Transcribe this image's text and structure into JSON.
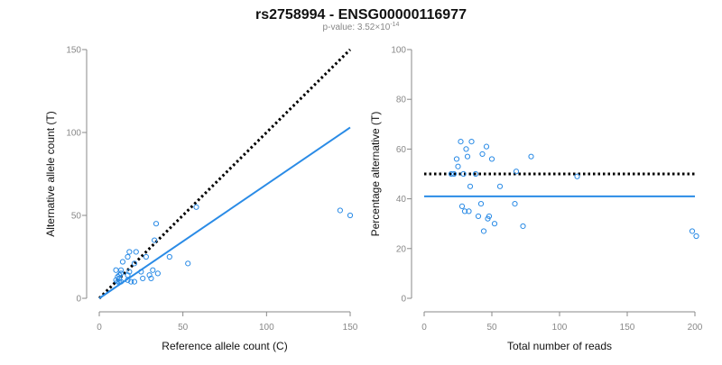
{
  "title": "rs2758994 - ENSG00000116977",
  "subtitle": {
    "prefix": "p-value: 3.52×10",
    "exponent": "-14"
  },
  "colors": {
    "points": "#2a8be6",
    "fit_line": "#2a8be6",
    "reference_line": "#000000",
    "axis": "#888888"
  },
  "chart_data": [
    {
      "type": "scatter",
      "xlabel": "Reference allele count (C)",
      "ylabel": "Alternative allele count (T)",
      "xlim": [
        0,
        150
      ],
      "ylim": [
        0,
        150
      ],
      "xticks": [
        0,
        50,
        100,
        150
      ],
      "yticks": [
        0,
        50,
        100,
        150
      ],
      "grid": false,
      "points": [
        [
          10,
          17
        ],
        [
          11,
          13
        ],
        [
          12,
          12
        ],
        [
          12,
          14
        ],
        [
          12,
          10
        ],
        [
          10,
          11
        ],
        [
          11,
          10
        ],
        [
          13,
          17
        ],
        [
          14,
          22
        ],
        [
          13,
          15
        ],
        [
          13,
          10
        ],
        [
          18,
          28
        ],
        [
          17,
          25
        ],
        [
          17,
          14
        ],
        [
          18,
          16
        ],
        [
          17,
          11
        ],
        [
          19,
          10
        ],
        [
          21,
          10
        ],
        [
          21,
          21
        ],
        [
          22,
          28
        ],
        [
          25,
          16
        ],
        [
          26,
          12
        ],
        [
          28,
          25
        ],
        [
          30,
          14
        ],
        [
          31,
          12
        ],
        [
          33,
          35
        ],
        [
          34,
          45
        ],
        [
          32,
          17
        ],
        [
          35,
          15
        ],
        [
          42,
          25
        ],
        [
          53,
          21
        ],
        [
          58,
          55
        ],
        [
          144,
          53
        ],
        [
          150,
          50
        ]
      ],
      "lines": [
        {
          "name": "reference",
          "style": "dotted",
          "x": [
            0,
            150
          ],
          "y": [
            0,
            150
          ]
        },
        {
          "name": "fit",
          "style": "solid",
          "x": [
            0,
            150
          ],
          "y": [
            0,
            103
          ]
        }
      ]
    },
    {
      "type": "scatter",
      "xlabel": "Total number of reads",
      "ylabel": "Percentage alternative (T)",
      "xlim": [
        0,
        200
      ],
      "ylim": [
        0,
        100
      ],
      "xticks": [
        0,
        50,
        100,
        150,
        200
      ],
      "yticks": [
        0,
        20,
        40,
        60,
        80,
        100
      ],
      "grid": false,
      "points": [
        [
          20,
          50
        ],
        [
          22,
          50
        ],
        [
          24,
          56
        ],
        [
          25,
          53
        ],
        [
          27,
          63
        ],
        [
          28,
          37
        ],
        [
          29,
          50
        ],
        [
          30,
          35
        ],
        [
          31,
          60
        ],
        [
          32,
          57
        ],
        [
          33,
          35
        ],
        [
          34,
          45
        ],
        [
          35,
          63
        ],
        [
          38,
          50
        ],
        [
          40,
          33
        ],
        [
          42,
          38
        ],
        [
          43,
          58
        ],
        [
          44,
          27
        ],
        [
          46,
          61
        ],
        [
          47,
          32
        ],
        [
          48,
          33
        ],
        [
          50,
          56
        ],
        [
          52,
          30
        ],
        [
          56,
          45
        ],
        [
          67,
          38
        ],
        [
          68,
          51
        ],
        [
          73,
          29
        ],
        [
          79,
          57
        ],
        [
          113,
          49
        ],
        [
          198,
          27
        ],
        [
          201,
          25
        ]
      ],
      "lines": [
        {
          "name": "reference",
          "style": "dotted",
          "x": [
            0,
            200
          ],
          "y": [
            50,
            50
          ]
        },
        {
          "name": "fit",
          "style": "solid",
          "x": [
            0,
            200
          ],
          "y": [
            41,
            41
          ]
        }
      ]
    }
  ]
}
